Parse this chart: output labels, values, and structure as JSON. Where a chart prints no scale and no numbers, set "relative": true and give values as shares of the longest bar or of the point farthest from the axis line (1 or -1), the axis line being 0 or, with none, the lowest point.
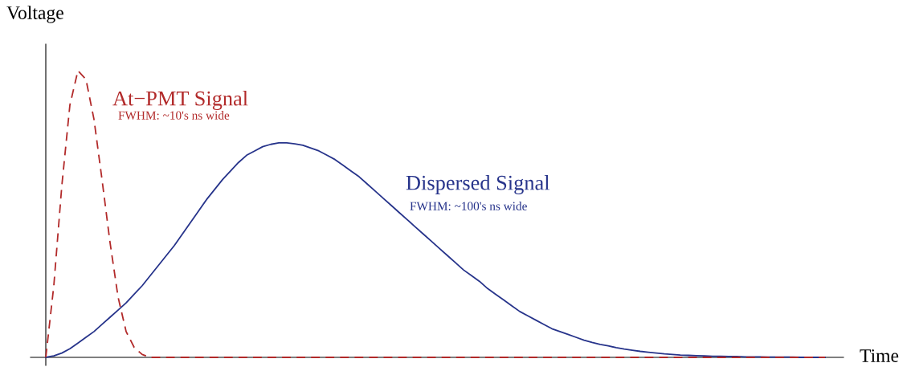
{
  "chart_data": {
    "type": "line",
    "relative": true,
    "xlabel": "Time",
    "ylabel": "Voltage",
    "tick_labels": false,
    "categories": [
      null,
      null,
      null,
      null,
      null,
      null,
      null,
      null,
      null,
      null,
      null,
      null,
      null,
      null,
      null,
      null,
      null,
      null,
      null,
      null,
      null,
      null,
      null,
      null,
      null,
      null,
      null,
      null,
      null,
      null,
      null,
      null,
      null,
      null,
      null,
      null,
      null,
      null,
      null,
      null,
      null,
      null,
      null,
      null,
      null,
      null,
      null,
      null,
      null,
      null,
      null,
      null,
      null,
      null,
      null,
      null,
      null,
      null,
      null,
      null,
      null,
      null,
      null,
      null,
      null,
      null,
      null,
      null,
      null,
      null,
      null,
      null,
      null,
      null,
      null,
      null,
      null,
      null,
      null,
      null,
      null,
      null,
      null,
      null,
      null,
      null,
      null,
      null,
      null,
      null,
      null,
      null,
      null,
      null,
      null,
      null,
      null,
      null
    ],
    "series": [
      {
        "name": "At−PMT Signal",
        "color": "#b22a2a",
        "line_style": "dashed",
        "values": [
          0,
          0.25,
          0.6,
          0.88,
          1.0,
          0.97,
          0.83,
          0.62,
          0.4,
          0.21,
          0.09,
          0.035,
          0.01,
          0,
          0,
          0,
          0,
          0,
          0,
          0,
          0,
          0,
          0,
          0,
          0,
          0,
          0,
          0,
          0,
          0,
          0,
          0,
          0,
          0,
          0,
          0,
          0,
          0,
          0,
          0,
          0,
          0,
          0,
          0,
          0,
          0,
          0,
          0,
          0,
          0,
          0,
          0,
          0,
          0,
          0,
          0,
          0,
          0,
          0,
          0,
          0,
          0,
          0,
          0,
          0,
          0,
          0,
          0,
          0,
          0,
          0,
          0,
          0,
          0,
          0,
          0,
          0,
          0,
          0,
          0,
          0,
          0,
          0,
          0,
          0,
          0,
          0,
          0,
          0,
          0,
          0,
          0,
          0,
          0,
          0,
          0,
          0,
          0
        ]
      },
      {
        "name": "Dispersed Signal",
        "color": "#27348b",
        "line_style": "solid",
        "values": [
          0,
          0.005,
          0.015,
          0.03,
          0.05,
          0.07,
          0.09,
          0.115,
          0.14,
          0.165,
          0.19,
          0.22,
          0.25,
          0.285,
          0.32,
          0.355,
          0.39,
          0.43,
          0.47,
          0.51,
          0.55,
          0.585,
          0.62,
          0.65,
          0.68,
          0.705,
          0.72,
          0.735,
          0.743,
          0.748,
          0.748,
          0.745,
          0.74,
          0.73,
          0.72,
          0.705,
          0.69,
          0.67,
          0.65,
          0.63,
          0.605,
          0.58,
          0.555,
          0.53,
          0.505,
          0.48,
          0.455,
          0.43,
          0.405,
          0.38,
          0.355,
          0.33,
          0.305,
          0.285,
          0.265,
          0.24,
          0.22,
          0.2,
          0.18,
          0.16,
          0.145,
          0.13,
          0.115,
          0.1,
          0.09,
          0.08,
          0.07,
          0.06,
          0.052,
          0.045,
          0.04,
          0.034,
          0.029,
          0.025,
          0.021,
          0.018,
          0.015,
          0.012,
          0.01,
          0.008,
          0.007,
          0.006,
          0.005,
          0.004,
          0.004,
          0.003,
          0.003,
          0.002,
          0.002,
          0.002,
          0.001,
          0.001,
          0.001,
          0.001,
          0,
          0,
          0,
          0
        ]
      }
    ],
    "annotations": [
      "FWHM: ~10's ns wide",
      "FWHM: ~100's ns wide"
    ]
  }
}
